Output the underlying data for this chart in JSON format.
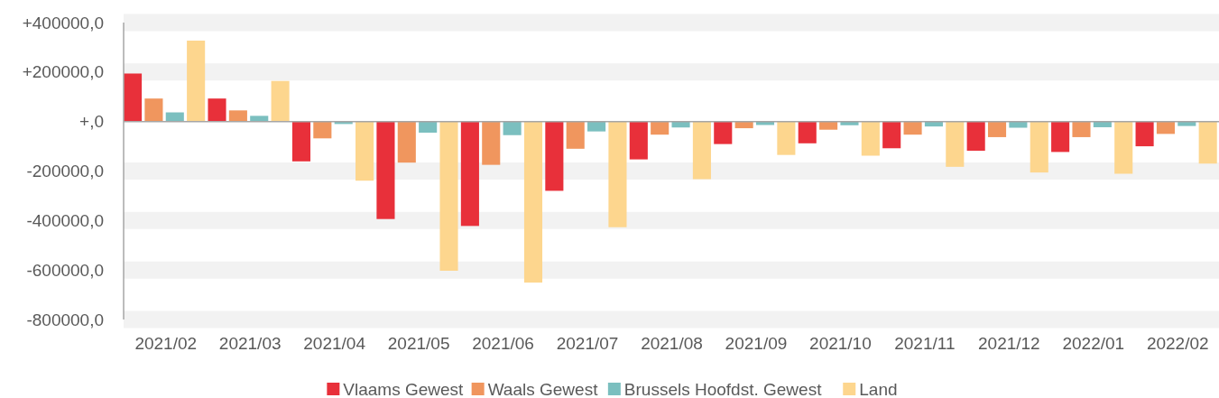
{
  "chart_data": {
    "type": "bar",
    "categories": [
      "2021/02",
      "2021/03",
      "2021/04",
      "2021/05",
      "2021/06",
      "2021/07",
      "2021/08",
      "2021/09",
      "2021/10",
      "2021/11",
      "2021/12",
      "2022/01",
      "2022/02"
    ],
    "series": [
      {
        "name": "Vlaams Gewest",
        "color": "#e8303a",
        "values": [
          194000,
          93000,
          -161000,
          -394000,
          -422000,
          -280000,
          -153000,
          -91000,
          -88000,
          -108000,
          -118000,
          -123000,
          -100000
        ]
      },
      {
        "name": "Waals Gewest",
        "color": "#f0965e",
        "values": [
          93000,
          45000,
          -68000,
          -166000,
          -175000,
          -110000,
          -53000,
          -27000,
          -33000,
          -53000,
          -63000,
          -63000,
          -50000
        ]
      },
      {
        "name": "Brussels Hoofdst. Gewest",
        "color": "#7bbfbf",
        "values": [
          37000,
          23000,
          -10000,
          -45000,
          -55000,
          -40000,
          -24000,
          -14000,
          -15000,
          -20000,
          -25000,
          -23000,
          -18000
        ]
      },
      {
        "name": "Land",
        "color": "#fdd68e",
        "values": [
          327000,
          164000,
          -239000,
          -603000,
          -651000,
          -427000,
          -233000,
          -135000,
          -138000,
          -183000,
          -206000,
          -211000,
          -170000
        ]
      }
    ],
    "ylim": [
      -800000,
      400000
    ],
    "yticks": [
      {
        "value": 400000,
        "label": "+400000,0"
      },
      {
        "value": 200000,
        "label": "+200000,0"
      },
      {
        "value": 0,
        "label": "+,0"
      },
      {
        "value": -200000,
        "label": "-200000,0"
      },
      {
        "value": -400000,
        "label": "-400000,0"
      },
      {
        "value": -600000,
        "label": "-600000,0"
      },
      {
        "value": -800000,
        "label": "-800000,0"
      }
    ],
    "grid": true,
    "legend": "bottom"
  }
}
